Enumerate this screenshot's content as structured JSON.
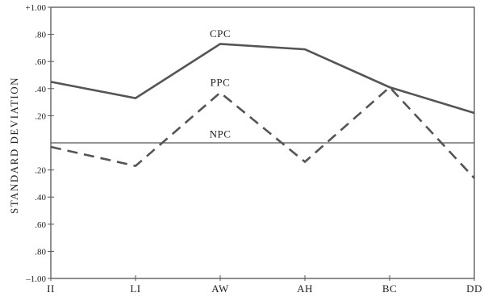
{
  "chart_data": {
    "type": "line",
    "title": "",
    "xlabel": "",
    "ylabel": "STANDARD DEVIATION",
    "categories": [
      "II",
      "LI",
      "AW",
      "AH",
      "BC",
      "DD"
    ],
    "ylim": [
      -1.0,
      1.0
    ],
    "yticks": [
      1.0,
      0.8,
      0.6,
      0.4,
      0.2,
      -0.2,
      -0.4,
      -0.6,
      -0.8,
      -1.0
    ],
    "ytick_labels": [
      "+1.00",
      ".80",
      ".60",
      ".40",
      ".20",
      ".20",
      ".40",
      ".60",
      ".80",
      "–1.00"
    ],
    "grid": false,
    "series": [
      {
        "name": "CPC",
        "style": "solid",
        "color": "#555555",
        "values": [
          0.45,
          0.33,
          0.73,
          0.69,
          0.41,
          0.22
        ]
      },
      {
        "name": "PPC",
        "style": "dashed",
        "color": "#555555",
        "values": [
          -0.03,
          -0.17,
          0.37,
          -0.14,
          0.41,
          -0.26
        ]
      },
      {
        "name": "NPC",
        "style": "thin",
        "color": "#555555",
        "values": [
          0.0,
          0.0,
          0.0,
          0.0,
          0.0,
          0.0
        ]
      }
    ],
    "series_label_positions": [
      {
        "name": "CPC",
        "category": "AW",
        "value": 0.78
      },
      {
        "name": "PPC",
        "category": "AW",
        "value": 0.42
      },
      {
        "name": "NPC",
        "category": "AW",
        "value": 0.04
      }
    ]
  }
}
